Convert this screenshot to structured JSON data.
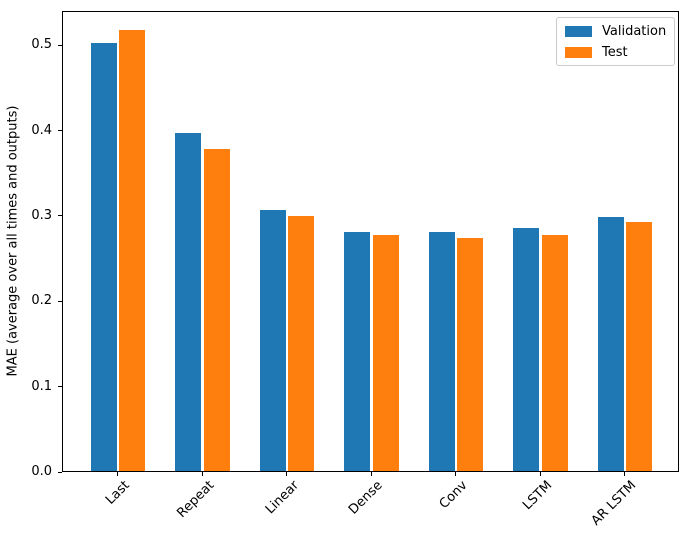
{
  "figure": {
    "background_color": "#ffffff",
    "axes_edge_color": "#000000"
  },
  "chart_data": {
    "type": "bar",
    "title": "",
    "xlabel": "",
    "ylabel": "MAE (average over all times and outputs)",
    "categories": [
      "Last",
      "Repeat",
      "Linear",
      "Dense",
      "Conv",
      "LSTM",
      "AR LSTM"
    ],
    "series": [
      {
        "name": "Validation",
        "color": "#1f77b4",
        "values": [
          0.501,
          0.396,
          0.306,
          0.28,
          0.28,
          0.285,
          0.298
        ]
      },
      {
        "name": "Test",
        "color": "#ff7f0e",
        "values": [
          0.516,
          0.377,
          0.299,
          0.276,
          0.273,
          0.276,
          0.292
        ]
      }
    ],
    "ylim": [
      0,
      0.54
    ],
    "yticks": [
      0.0,
      0.1,
      0.2,
      0.3,
      0.4,
      0.5
    ],
    "ytick_format_decimals": 1,
    "xtick_rotation_deg": 45,
    "grid": false,
    "legend_position": "upper right"
  }
}
